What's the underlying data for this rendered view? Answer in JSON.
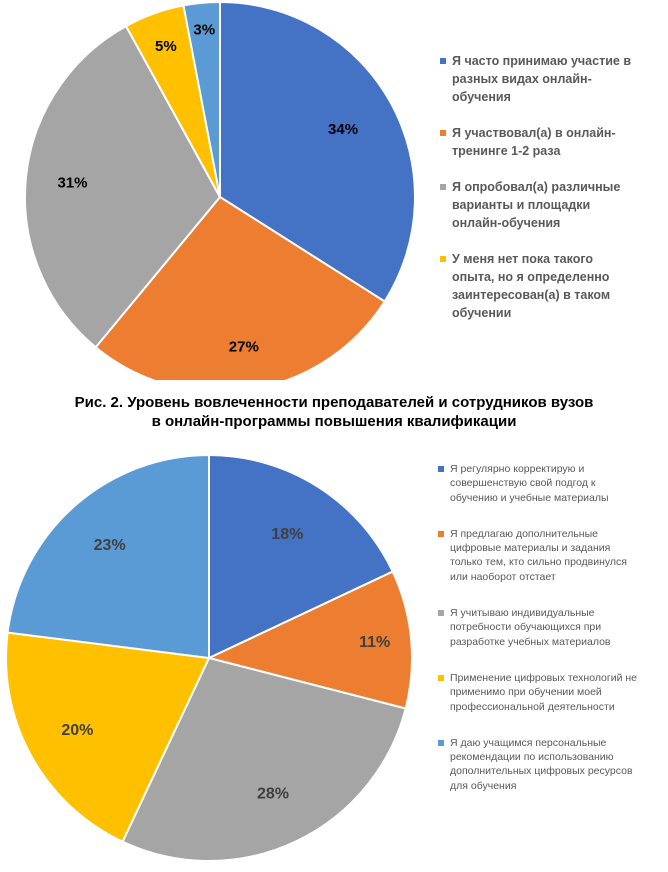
{
  "chart_data": [
    {
      "type": "pie",
      "categories": [
        "Я часто принимаю участие в разных видах онлайн-обучения",
        "Я участвовал(а) в онлайн-тренинге 1-2 раза",
        "Я опробовал(а) различные варианты и площадки онлайн-обучения",
        "У меня нет пока такого опыта, но я определенно заинтересован(а) в таком обучении",
        ""
      ],
      "values": [
        34,
        27,
        31,
        5,
        3
      ],
      "data_labels": [
        "34%",
        "27%",
        "31%",
        "5%",
        "3%"
      ],
      "colors": [
        "#4472c4",
        "#ed7d31",
        "#a5a5a5",
        "#ffc000",
        "#5b9bd5"
      ],
      "legend": {
        "placement": "right",
        "items": [
          {
            "lines": [
              "Я часто принимаю участие в",
              "разных видах онлайн-",
              "обучения"
            ],
            "color": "#4472c4"
          },
          {
            "lines": [
              "Я участвовал(а) в онлайн-",
              "тренинге 1-2 раза"
            ],
            "color": "#ed7d31"
          },
          {
            "lines": [
              "Я опробовал(а) различные",
              "варианты и площадки",
              "онлайн-обучения"
            ],
            "color": "#a5a5a5"
          },
          {
            "lines": [
              "У меня нет пока такого",
              "опыта, но я определенно",
              "заинтересован(а) в таком",
              "обучении"
            ],
            "color": "#ffc000"
          }
        ]
      }
    },
    {
      "type": "pie",
      "categories": [
        "Я регулярно корректирую и совершенствую свой подгод к обучению и учебные материалы",
        "Я предлагаю дополнительные цифровые материалы и задания только тем, кто сильно продвинулся или наоборот отстает",
        "Я учитываю индивидуальные потребности обучающихся при разработке учебных материалов",
        "Применение цифровых технологий не применимо при обучении моей профессиональной деятельности",
        "Я даю учащимся персональные рекомендации по использованию дополнительных цифровых ресурсов для обучения"
      ],
      "values": [
        18,
        11,
        28,
        20,
        23
      ],
      "data_labels": [
        "18%",
        "11%",
        "28%",
        "20%",
        "23%"
      ],
      "colors": [
        "#4472c4",
        "#ed7d31",
        "#a5a5a5",
        "#ffc000",
        "#5b9bd5"
      ],
      "legend": {
        "placement": "right",
        "items": [
          {
            "lines": [
              "Я регулярно корректирую и",
              "совершенствую свой подгод к",
              "обучению и учебные материалы"
            ],
            "color": "#4472c4"
          },
          {
            "lines": [
              "Я предлагаю дополнительные",
              "цифровые материалы и задания",
              "только тем, кто сильно продвинулся",
              "или наоборот отстает"
            ],
            "color": "#ed7d31"
          },
          {
            "lines": [
              "Я учитываю индивидуальные",
              "потребности обучающихся при",
              "разработке учебных материалов"
            ],
            "color": "#a5a5a5"
          },
          {
            "lines": [
              "Применение цифровых технологий не",
              "применимо при обучении  моей",
              "профессиональной деятельности"
            ],
            "color": "#ffc000"
          },
          {
            "lines": [
              "Я даю учащимся персональные",
              "рекомендации по использованию",
              "дополнительных цифровых ресурсов",
              "для обучения"
            ],
            "color": "#5b9bd5"
          }
        ]
      }
    }
  ],
  "caption": {
    "line1": "Рис. 2. Уровень вовлеченности преподавателей и сотрудников вузов",
    "line2": "в онлайн-программы повышения квалификации"
  }
}
